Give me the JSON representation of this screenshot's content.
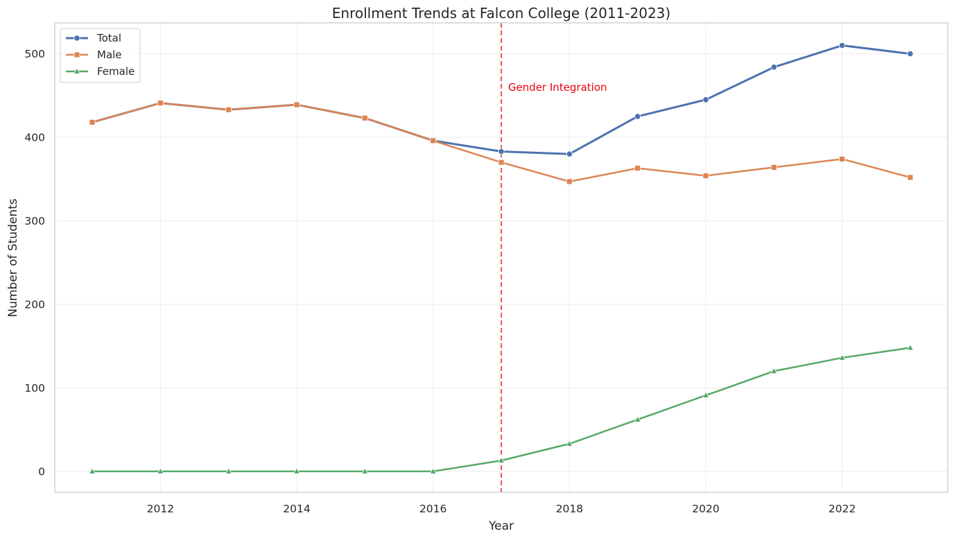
{
  "chart_data": {
    "type": "line",
    "title": "Enrollment Trends at Falcon College (2011-2023)",
    "xlabel": "Year",
    "ylabel": "Number of Students",
    "x": [
      2011,
      2012,
      2013,
      2014,
      2015,
      2016,
      2017,
      2018,
      2019,
      2020,
      2021,
      2022,
      2023
    ],
    "xlim": [
      2010.45,
      2023.55
    ],
    "ylim": [
      -25,
      537
    ],
    "x_ticks": [
      2012,
      2014,
      2016,
      2018,
      2020,
      2022
    ],
    "y_ticks": [
      0,
      100,
      200,
      300,
      400,
      500
    ],
    "grid": true,
    "legend_position": "top-left",
    "series": [
      {
        "name": "Total",
        "color": "#4c72b0",
        "marker": "circle",
        "values": [
          418,
          441,
          433,
          439,
          423,
          396,
          383,
          380,
          425,
          445,
          484,
          510,
          500
        ]
      },
      {
        "name": "Male",
        "color": "#dd8452",
        "marker": "square",
        "values": [
          418,
          441,
          433,
          439,
          423,
          396,
          370,
          347,
          363,
          354,
          364,
          374,
          352
        ]
      },
      {
        "name": "Female",
        "color": "#55a868",
        "marker": "triangle",
        "values": [
          0,
          0,
          0,
          0,
          0,
          0,
          13,
          33,
          62,
          91,
          120,
          136,
          148
        ]
      }
    ],
    "annotations": [
      {
        "type": "vline",
        "x": 2017,
        "color": "#e8463a",
        "style": "dashed"
      },
      {
        "type": "text",
        "text": "Gender Integration",
        "x": 2017.1,
        "y": 460,
        "color": "#e8000b"
      }
    ]
  }
}
